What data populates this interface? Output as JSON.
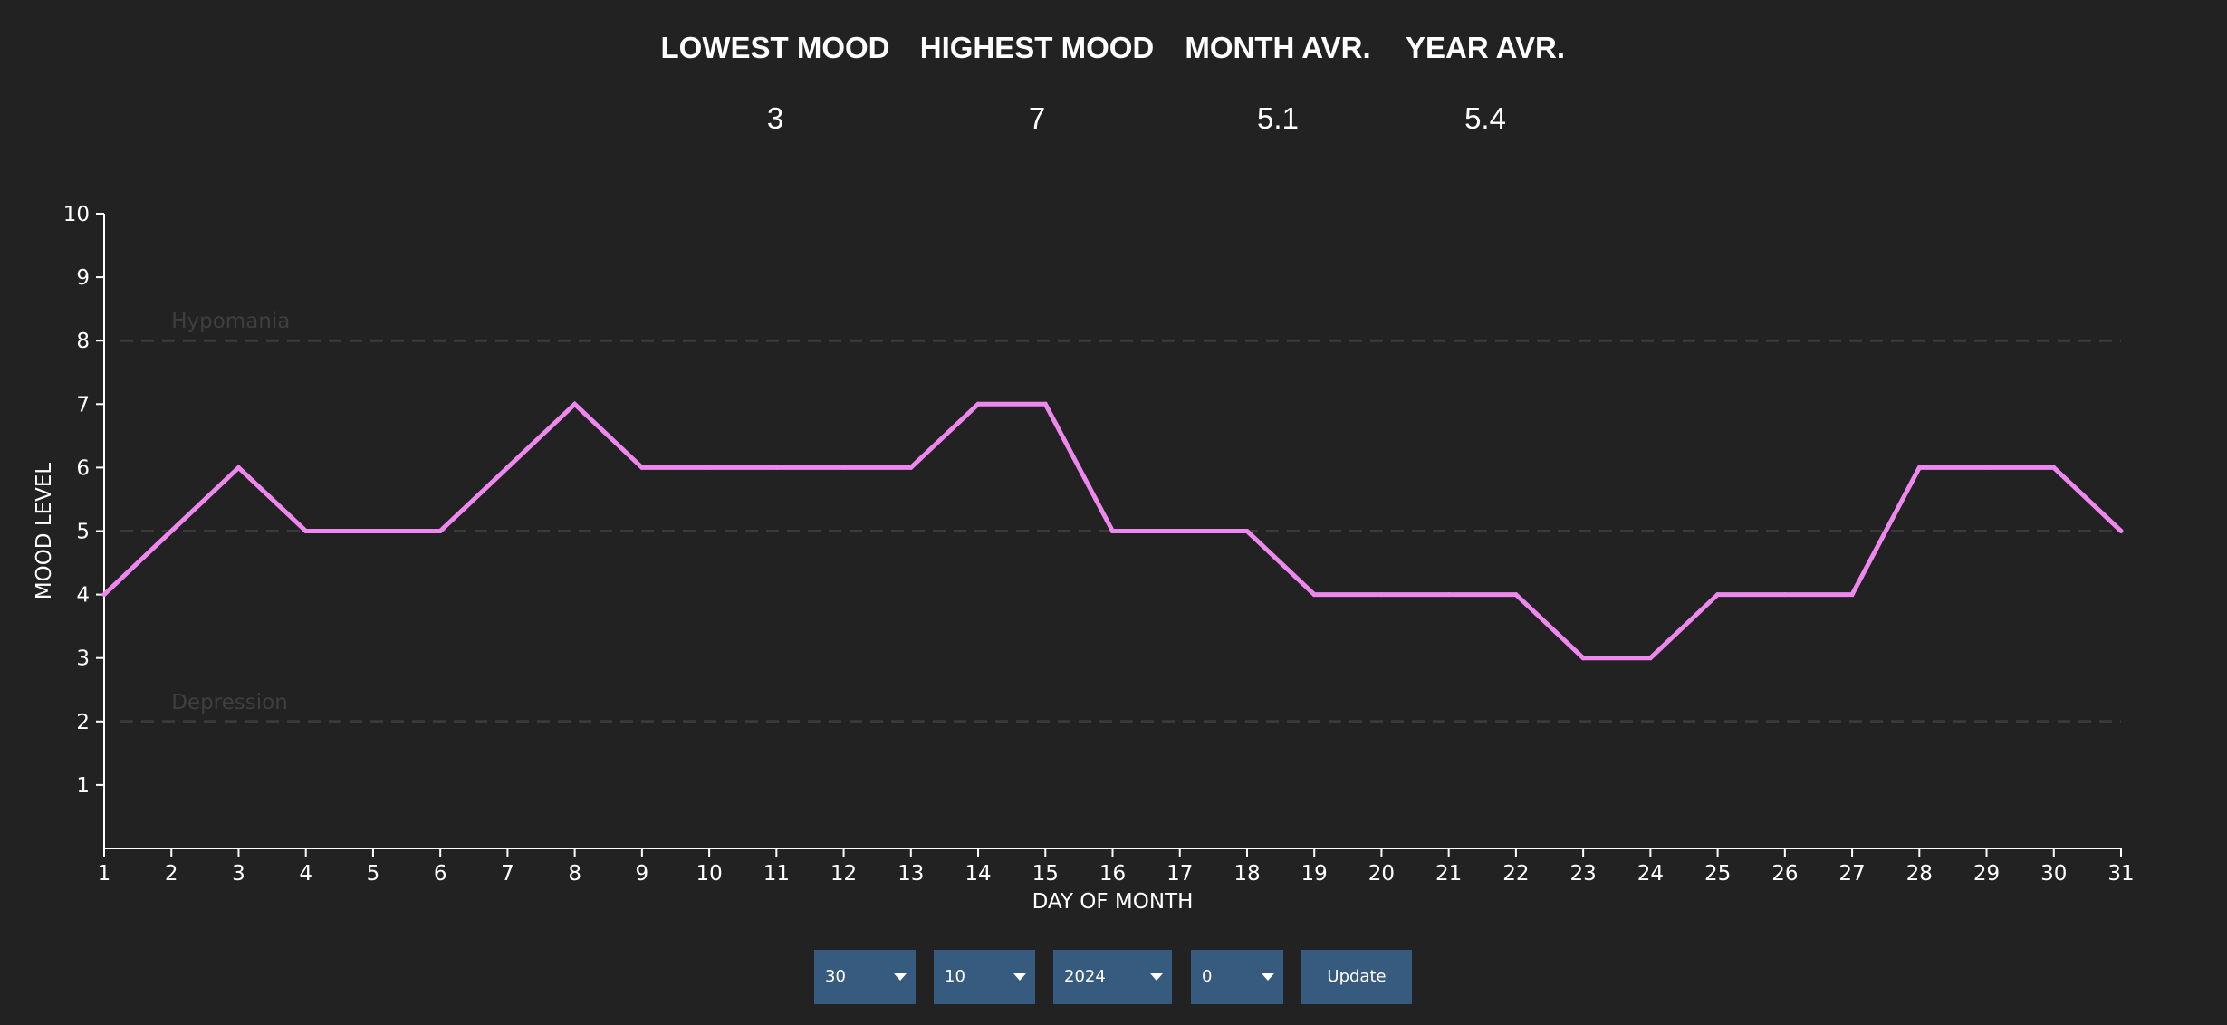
{
  "stats": [
    {
      "label": "LOWEST MOOD",
      "value": "3"
    },
    {
      "label": "HIGHEST MOOD",
      "value": "7"
    },
    {
      "label": "MONTH AVR.",
      "value": "5.1"
    },
    {
      "label": "YEAR AVR.",
      "value": "5.4"
    }
  ],
  "chart_data": {
    "type": "line",
    "title": "",
    "xlabel": "DAY OF MONTH",
    "ylabel": "MOOD LEVEL",
    "xlim": [
      1,
      31
    ],
    "ylim": [
      0,
      10
    ],
    "x_ticks": [
      1,
      2,
      3,
      4,
      5,
      6,
      7,
      8,
      9,
      10,
      11,
      12,
      13,
      14,
      15,
      16,
      17,
      18,
      19,
      20,
      21,
      22,
      23,
      24,
      25,
      26,
      27,
      28,
      29,
      30,
      31
    ],
    "y_ticks": [
      1,
      2,
      3,
      4,
      5,
      6,
      7,
      8,
      9,
      10
    ],
    "grid": false,
    "series": [
      {
        "name": "Mood",
        "color": "#ee88ee",
        "x": [
          1,
          2,
          3,
          4,
          5,
          6,
          7,
          8,
          9,
          10,
          11,
          12,
          13,
          14,
          15,
          16,
          17,
          18,
          19,
          20,
          21,
          22,
          23,
          24,
          25,
          26,
          27,
          28,
          29,
          30,
          31
        ],
        "values": [
          4,
          5,
          6,
          5,
          5,
          5,
          6,
          7,
          6,
          6,
          6,
          6,
          6,
          7,
          7,
          5,
          5,
          5,
          4,
          4,
          4,
          4,
          3,
          3,
          4,
          4,
          4,
          6,
          6,
          6,
          5
        ]
      }
    ],
    "reference_lines": [
      {
        "y": 8,
        "label": "Hypomania"
      },
      {
        "y": 5,
        "label": ""
      },
      {
        "y": 2,
        "label": "Depression"
      }
    ]
  },
  "controls": {
    "day": "30",
    "month": "10",
    "year": "2024",
    "offset": "0",
    "update_label": "Update"
  },
  "colors": {
    "background": "#222222",
    "line": "#ee88ee",
    "axis": "#ffffff",
    "reference": "#3a3a3a",
    "reference_text": "#3f3f3f",
    "control_bg": "#375a7f"
  }
}
